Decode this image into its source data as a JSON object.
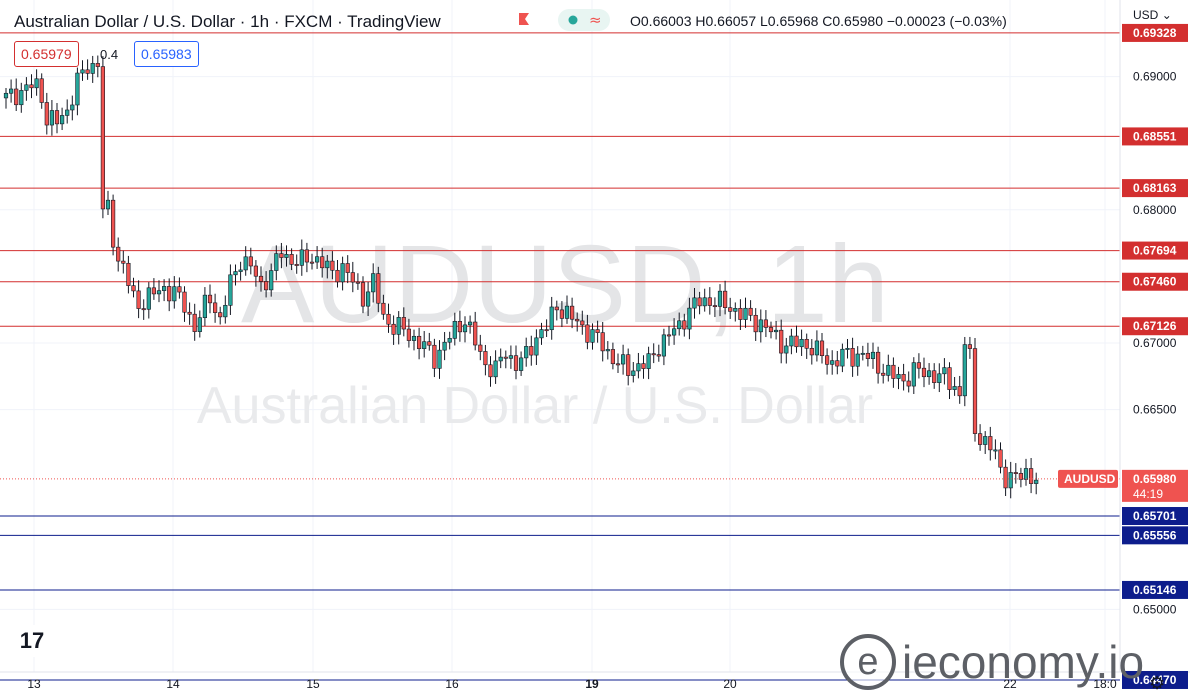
{
  "header": {
    "title": "Australian Dollar / U.S. Dollar · 1h · FXCM · TradingView",
    "ohlc_text": "O0.66003  H0.66057  L0.65968  C0.65980  −0.00023 (−0.03%)",
    "bid": "0.65979",
    "spread": "0.4",
    "ask": "0.65983",
    "currency": "USD"
  },
  "watermark": {
    "symbol": "AUDUSD, 1h",
    "name": "Australian Dollar / U.S. Dollar"
  },
  "brand": {
    "name": "ieconomy.io",
    "mark": "e"
  },
  "logo": {
    "text": "17"
  },
  "colors": {
    "up": "#26a69a",
    "down": "#ef5350",
    "resistance": "#d32f2f",
    "support": "#0d1d8c",
    "price_tag": "#ef5350",
    "icon_flag": "#ef5350",
    "status_dot": "#26a69a"
  },
  "icons": [
    "flag-icon",
    "status-dot-icon",
    "wave-icon",
    "chevron-down-icon",
    "settings-icon",
    "tradingview-logo-icon"
  ],
  "chart_data": {
    "type": "candlestick",
    "symbol": "AUDUSD",
    "interval": "1h",
    "last_price": 0.6598,
    "last_price_label": "0.65980",
    "countdown": "44:19",
    "ylim": [
      0.6462,
      0.6935
    ],
    "y_ticks": [
      "0.69000",
      "0.68000",
      "0.67000",
      "0.66500",
      "0.65000"
    ],
    "x_ticks": [
      "13",
      "14",
      "15",
      "16",
      "19",
      "20",
      "22",
      "18:0"
    ],
    "resistance_levels": [
      {
        "value": 0.69328,
        "label": "0.69328"
      },
      {
        "value": 0.68551,
        "label": "0.68551"
      },
      {
        "value": 0.68163,
        "label": "0.68163"
      },
      {
        "value": 0.67694,
        "label": "0.67694"
      },
      {
        "value": 0.6746,
        "label": "0.67460"
      },
      {
        "value": 0.67126,
        "label": "0.67126"
      }
    ],
    "support_levels": [
      {
        "value": 0.65701,
        "label": "0.65701"
      },
      {
        "value": 0.65556,
        "label": "0.65556"
      },
      {
        "value": 0.65146,
        "label": "0.65146"
      },
      {
        "value": 0.6447,
        "label": "0.64470"
      }
    ],
    "close_path": [
      [
        0,
        0.6884
      ],
      [
        3,
        0.6889
      ],
      [
        5,
        0.6893
      ],
      [
        6,
        0.6893
      ],
      [
        7,
        0.6886
      ],
      [
        8,
        0.6868
      ],
      [
        10,
        0.6866
      ],
      [
        12,
        0.6875
      ],
      [
        14,
        0.6896
      ],
      [
        16,
        0.6908
      ],
      [
        17,
        0.6908
      ],
      [
        18,
        0.6911
      ],
      [
        19,
        0.6799
      ],
      [
        20,
        0.68
      ],
      [
        21,
        0.6779
      ],
      [
        22,
        0.6763
      ],
      [
        23,
        0.6757
      ],
      [
        25,
        0.6733
      ],
      [
        26,
        0.6729
      ],
      [
        28,
        0.6735
      ],
      [
        31,
        0.6741
      ],
      [
        33,
        0.6738
      ],
      [
        35,
        0.6728
      ],
      [
        37,
        0.6712
      ],
      [
        40,
        0.6735
      ],
      [
        42,
        0.6717
      ],
      [
        44,
        0.6745
      ],
      [
        46,
        0.6763
      ],
      [
        48,
        0.6757
      ],
      [
        50,
        0.6743
      ],
      [
        52,
        0.6753
      ],
      [
        54,
        0.6768
      ],
      [
        56,
        0.6762
      ],
      [
        58,
        0.6761
      ],
      [
        60,
        0.6765
      ],
      [
        62,
        0.676
      ],
      [
        64,
        0.6752
      ],
      [
        66,
        0.6757
      ],
      [
        68,
        0.6746
      ],
      [
        70,
        0.6735
      ],
      [
        72,
        0.6745
      ],
      [
        74,
        0.672
      ],
      [
        76,
        0.6712
      ],
      [
        78,
        0.671
      ],
      [
        80,
        0.6703
      ],
      [
        82,
        0.6697
      ],
      [
        84,
        0.6689
      ],
      [
        86,
        0.6699
      ],
      [
        88,
        0.671
      ],
      [
        90,
        0.6718
      ],
      [
        92,
        0.67
      ],
      [
        94,
        0.6684
      ],
      [
        96,
        0.668
      ],
      [
        98,
        0.6693
      ],
      [
        100,
        0.6684
      ],
      [
        102,
        0.669
      ],
      [
        104,
        0.6705
      ],
      [
        106,
        0.6712
      ],
      [
        108,
        0.6728
      ],
      [
        110,
        0.6722
      ],
      [
        112,
        0.6715
      ],
      [
        114,
        0.6709
      ],
      [
        116,
        0.6703
      ],
      [
        118,
        0.6693
      ],
      [
        120,
        0.6685
      ],
      [
        122,
        0.668
      ],
      [
        124,
        0.6683
      ],
      [
        126,
        0.6685
      ],
      [
        128,
        0.6698
      ],
      [
        130,
        0.6706
      ],
      [
        132,
        0.6713
      ],
      [
        134,
        0.6725
      ],
      [
        136,
        0.6731
      ],
      [
        138,
        0.6732
      ],
      [
        140,
        0.673
      ],
      [
        142,
        0.6727
      ],
      [
        144,
        0.6722
      ],
      [
        146,
        0.6718
      ],
      [
        148,
        0.6715
      ],
      [
        150,
        0.6708
      ],
      [
        152,
        0.67
      ],
      [
        154,
        0.6699
      ],
      [
        156,
        0.67
      ],
      [
        158,
        0.6697
      ],
      [
        160,
        0.669
      ],
      [
        162,
        0.6685
      ],
      [
        164,
        0.6691
      ],
      [
        166,
        0.669
      ],
      [
        168,
        0.6692
      ],
      [
        170,
        0.6686
      ],
      [
        172,
        0.668
      ],
      [
        174,
        0.6675
      ],
      [
        176,
        0.6672
      ],
      [
        178,
        0.6679
      ],
      [
        180,
        0.6678
      ],
      [
        182,
        0.6676
      ],
      [
        184,
        0.6674
      ],
      [
        186,
        0.6668
      ],
      [
        187,
        0.666
      ],
      [
        188,
        0.6701
      ],
      [
        189,
        0.6688
      ],
      [
        190,
        0.6635
      ],
      [
        192,
        0.6625
      ],
      [
        194,
        0.6617
      ],
      [
        195,
        0.6605
      ],
      [
        196,
        0.66
      ],
      [
        198,
        0.6598
      ],
      [
        200,
        0.6603
      ],
      [
        201,
        0.66
      ],
      [
        202,
        0.6598
      ]
    ]
  }
}
